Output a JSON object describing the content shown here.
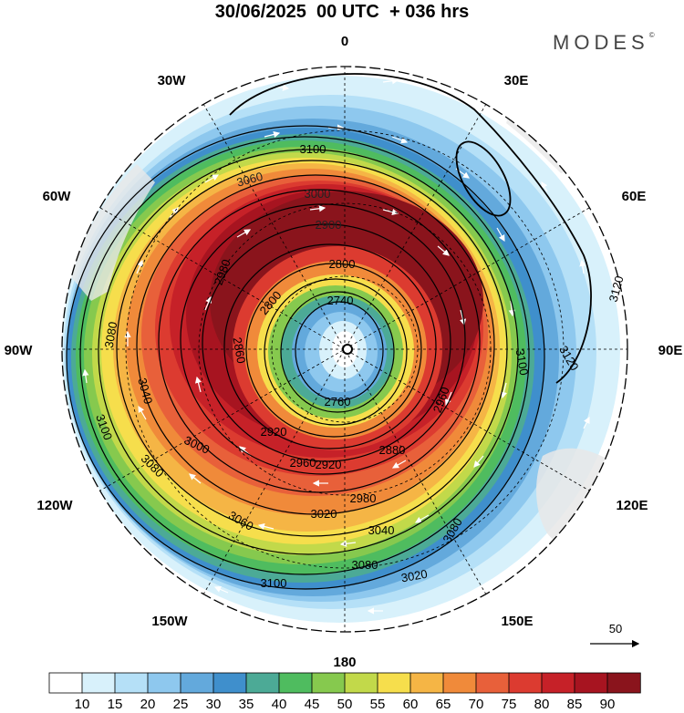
{
  "header": {
    "date": "30/06/2025",
    "run": "00 UTC",
    "lead": "+ 036 hrs",
    "brand": "MODES",
    "brand_mark": "©"
  },
  "map": {
    "projection": "polar-stereographic-south",
    "longitude_labels": [
      "0",
      "30E",
      "60E",
      "90E",
      "120E",
      "150E",
      "180",
      "150W",
      "120W",
      "90W",
      "60W",
      "30W"
    ],
    "contour_labels": [
      "3100",
      "3060",
      "3000",
      "2900",
      "2800",
      "2740",
      "2760",
      "2800",
      "2860",
      "2920",
      "2960",
      "2980",
      "3020",
      "3040",
      "3080",
      "3100",
      "3120",
      "3120",
      "3100",
      "3080",
      "3080",
      "3040",
      "3000",
      "3060",
      "3100",
      "3080",
      "3020",
      "2980",
      "2920",
      "2880",
      "2960"
    ],
    "wind_reference_label": "50",
    "colors": {
      "land": "#e8e8e8",
      "contour": "#000000",
      "arrows": "#ffffff"
    }
  },
  "colorbar": {
    "ticks": [
      "10",
      "15",
      "20",
      "25",
      "30",
      "35",
      "40",
      "45",
      "50",
      "55",
      "60",
      "65",
      "70",
      "75",
      "80",
      "85",
      "90"
    ],
    "colors": [
      "#ffffff",
      "#d8f1fb",
      "#b5e0f7",
      "#8ec8ee",
      "#63a9dc",
      "#3f8fcc",
      "#4caa96",
      "#4fbc5f",
      "#86c94e",
      "#c2d94a",
      "#f6de4c",
      "#f5b545",
      "#f08a3a",
      "#e8603a",
      "#dc3b30",
      "#c62128",
      "#a71420",
      "#8a141c"
    ]
  }
}
